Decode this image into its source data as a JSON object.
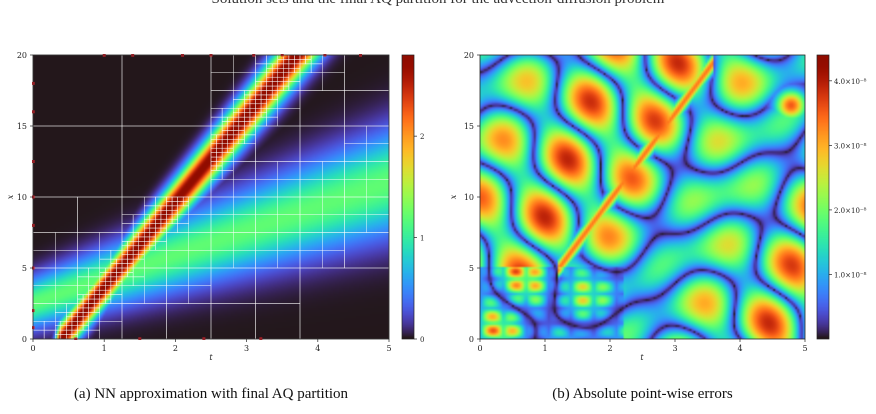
{
  "header": {
    "cut_text": "Solution sets and the final AQ partition for the advection-diffusion problem"
  },
  "colors": {
    "grid_lines": "#ffffff",
    "markers": "#e0202a",
    "colormap": "turbo"
  },
  "chart_data": [
    {
      "type": "heatmap",
      "caption": "(a) NN approximation with final AQ partition",
      "xlabel": "t",
      "ylabel": "x",
      "xlim": [
        0,
        5
      ],
      "ylim": [
        0,
        20
      ],
      "xticks": [
        "0",
        "1",
        "2",
        "3",
        "4",
        "5"
      ],
      "yticks": [
        "0",
        "5",
        "10",
        "15",
        "20"
      ],
      "colorbar": {
        "range": [
          0,
          2.8
        ],
        "ticks": [
          "0",
          "1",
          "2"
        ]
      },
      "features": [
        {
          "name": "sharp front",
          "from": [
            0.4,
            0
          ],
          "to": [
            3.7,
            20
          ],
          "peak": 2.8
        },
        {
          "name": "diffused band",
          "from": [
            0,
            2.5
          ],
          "to": [
            5,
            11
          ],
          "peak": 1.2
        }
      ]
    },
    {
      "type": "heatmap",
      "caption": "(b) Absolute point-wise errors",
      "xlabel": "t",
      "ylabel": "x",
      "xlim": [
        0,
        5
      ],
      "ylim": [
        0,
        20
      ],
      "xticks": [
        "0",
        "1",
        "2",
        "3",
        "4",
        "5"
      ],
      "yticks": [
        "0",
        "5",
        "10",
        "15",
        "20"
      ],
      "colorbar": {
        "range": [
          0,
          4.4e-08
        ],
        "ticks": [
          "1.0×10⁻⁸",
          "2.0×10⁻⁸",
          "3.0×10⁻⁸",
          "4.0×10⁻⁸"
        ],
        "tick_values": [
          1e-08,
          2e-08,
          3e-08,
          4e-08
        ]
      }
    }
  ]
}
